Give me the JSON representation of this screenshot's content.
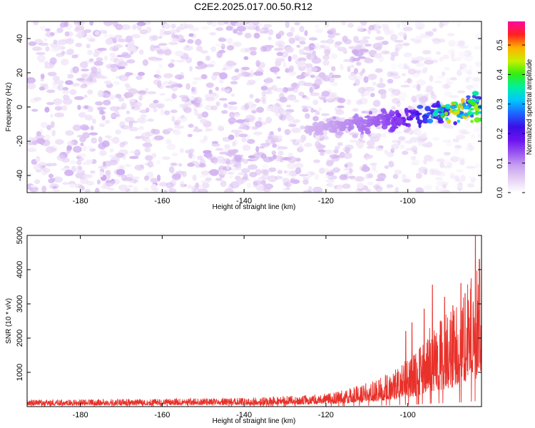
{
  "title": "C2E2.2025.017.00.50.R12",
  "colors": {
    "snr_line": "#e8312a",
    "frame": "#000000",
    "colormap": [
      "#ffffff",
      "#e6d2f4",
      "#c9a3f0",
      "#9a57f0",
      "#6a12ef",
      "#3b10e6",
      "#1e64ff",
      "#00c6ff",
      "#00f0a0",
      "#30ee10",
      "#c8f000",
      "#ffb000",
      "#ff2020",
      "#ff0aa0"
    ]
  },
  "chart_data": [
    {
      "type": "heatmap",
      "title": "C2E2.2025.017.00.50.R12",
      "xlabel": "Height of straight line (km)",
      "ylabel": "Frequency (Hz)",
      "xlim": [
        -193,
        -82
      ],
      "ylim": [
        -50,
        50
      ],
      "xticks": [
        -180,
        -160,
        -140,
        -120,
        -100
      ],
      "yticks": [
        -40,
        -20,
        0,
        20,
        40
      ],
      "grid": false,
      "colorbar": {
        "label": "Normalized spectral amplitude",
        "range": [
          0.0,
          0.58
        ],
        "ticks": [
          0.0,
          0.1,
          0.2,
          0.3,
          0.4,
          0.5
        ]
      },
      "features": {
        "background_amplitude": 0.05,
        "signal_track": {
          "x_start": -125,
          "x_end": -82,
          "frequency_start": -14,
          "frequency_end": 0,
          "peak_amplitude": 0.58,
          "peak_at": -88
        }
      }
    },
    {
      "type": "line",
      "xlabel": "Height of straight line (km)",
      "ylabel": "SNR (10 * v/v)",
      "xlim": [
        -193,
        -82
      ],
      "ylim": [
        0,
        5000
      ],
      "xticks": [
        -180,
        -160,
        -140,
        -120,
        -100
      ],
      "yticks": [
        1000,
        2000,
        3000,
        4000,
        5000
      ],
      "grid": false,
      "series": [
        {
          "x": [
            -193,
            -180,
            -160,
            -140,
            -130,
            -120,
            -115,
            -110,
            -105,
            -100,
            -97,
            -95,
            -92,
            -90,
            -88,
            -86,
            -84,
            -83,
            -82
          ],
          "y": [
            150,
            160,
            170,
            190,
            230,
            280,
            380,
            520,
            720,
            1050,
            1300,
            1700,
            1900,
            2100,
            2300,
            2600,
            3000,
            3300,
            3200
          ]
        }
      ],
      "peaks": [
        {
          "x": -100.5,
          "y": 2200
        },
        {
          "x": -99,
          "y": 2450
        },
        {
          "x": -96,
          "y": 2850
        },
        {
          "x": -94,
          "y": 3550
        },
        {
          "x": -91,
          "y": 3200
        },
        {
          "x": -89,
          "y": 2950
        },
        {
          "x": -87,
          "y": 3600
        },
        {
          "x": -86,
          "y": 3300
        },
        {
          "x": -84.5,
          "y": 3750
        },
        {
          "x": -83.5,
          "y": 5000
        },
        {
          "x": -82.5,
          "y": 4300
        }
      ]
    }
  ]
}
